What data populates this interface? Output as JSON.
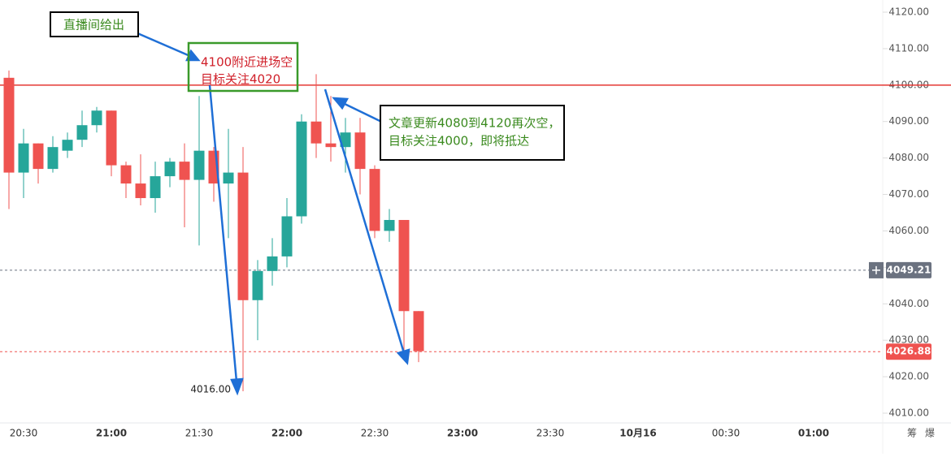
{
  "chart_data": {
    "type": "candlestick",
    "up_color": "#26a69a",
    "down_color": "#ef5350",
    "x": [
      "20:25",
      "20:30",
      "20:35",
      "20:40",
      "20:45",
      "20:50",
      "20:55",
      "21:00",
      "21:05",
      "21:10",
      "21:15",
      "21:20",
      "21:25",
      "21:30",
      "21:35",
      "21:40",
      "21:45",
      "21:50",
      "21:55",
      "22:00",
      "22:05",
      "22:10",
      "22:15",
      "22:20",
      "22:25",
      "22:30",
      "22:35",
      "22:40",
      "22:45"
    ],
    "open": [
      4102,
      4076,
      4084,
      4077,
      4082,
      4085,
      4089,
      4093,
      4078,
      4073,
      4069,
      4075,
      4079,
      4074,
      4082,
      4073,
      4076,
      4041,
      4049,
      4053,
      4064,
      4090,
      4084,
      4083,
      4087,
      4077,
      4060,
      4063,
      4038
    ],
    "high": [
      4104,
      4088,
      4084,
      4086,
      4087,
      4093,
      4094,
      4093,
      4079,
      4081,
      4079,
      4080,
      4084,
      4097,
      4083,
      4088,
      4083,
      4052,
      4058,
      4069,
      4092,
      4103,
      4097,
      4091,
      4091,
      4078,
      4066,
      4063,
      4038
    ],
    "low": [
      4066,
      4069,
      4073,
      4076,
      4080,
      4083,
      4087,
      4075,
      4069,
      4067,
      4065,
      4072,
      4061,
      4056,
      4068,
      4058,
      4016,
      4030,
      4045,
      4050,
      4062,
      4080,
      4079,
      4076,
      4070,
      4058,
      4057,
      4027,
      4024
    ],
    "close": [
      4076,
      4084,
      4077,
      4083,
      4085,
      4089,
      4093,
      4078,
      4073,
      4069,
      4075,
      4079,
      4074,
      4082,
      4073,
      4076,
      4041,
      4049,
      4053,
      4064,
      4090,
      4084,
      4083,
      4087,
      4077,
      4060,
      4063,
      4038,
      4027
    ],
    "ylim": [
      4010,
      4120
    ],
    "yticks": [
      {
        "value": 4010,
        "label": "4010.00"
      },
      {
        "value": 4020,
        "label": "4020.00"
      },
      {
        "value": 4030,
        "label": "4030.00"
      },
      {
        "value": 4040,
        "label": "4040.00"
      },
      {
        "value": 4050,
        "label": "4050.00"
      },
      {
        "value": 4060,
        "label": "4060.00"
      },
      {
        "value": 4070,
        "label": "4070.00"
      },
      {
        "value": 4080,
        "label": "4080.00"
      },
      {
        "value": 4090,
        "label": "4090.00"
      },
      {
        "value": 4100,
        "label": "4100.00"
      },
      {
        "value": 4110,
        "label": "4110.00"
      },
      {
        "value": 4120,
        "label": "4120.00"
      }
    ],
    "xticks": [
      "20:30",
      "21:00",
      "21:30",
      "22:00",
      "22:30",
      "23:00",
      "23:30",
      "10月16",
      "00:30",
      "01:00"
    ],
    "horizontal_line": {
      "value": 4100,
      "color": "#e53935"
    },
    "price_lines": [
      {
        "value": 4049.21,
        "color": "#6b7280"
      },
      {
        "value": 4026.88,
        "color": "#ef5350"
      }
    ],
    "low_marker": {
      "value": 4016,
      "label": "4016.00"
    },
    "annotations": [
      "直播间给出",
      "4100附近进场空",
      "目标关注4020",
      "文章更新4080到4120再次空，",
      "目标关注4000，即将抵达"
    ],
    "corner_labels": [
      "筹",
      "爆"
    ]
  }
}
